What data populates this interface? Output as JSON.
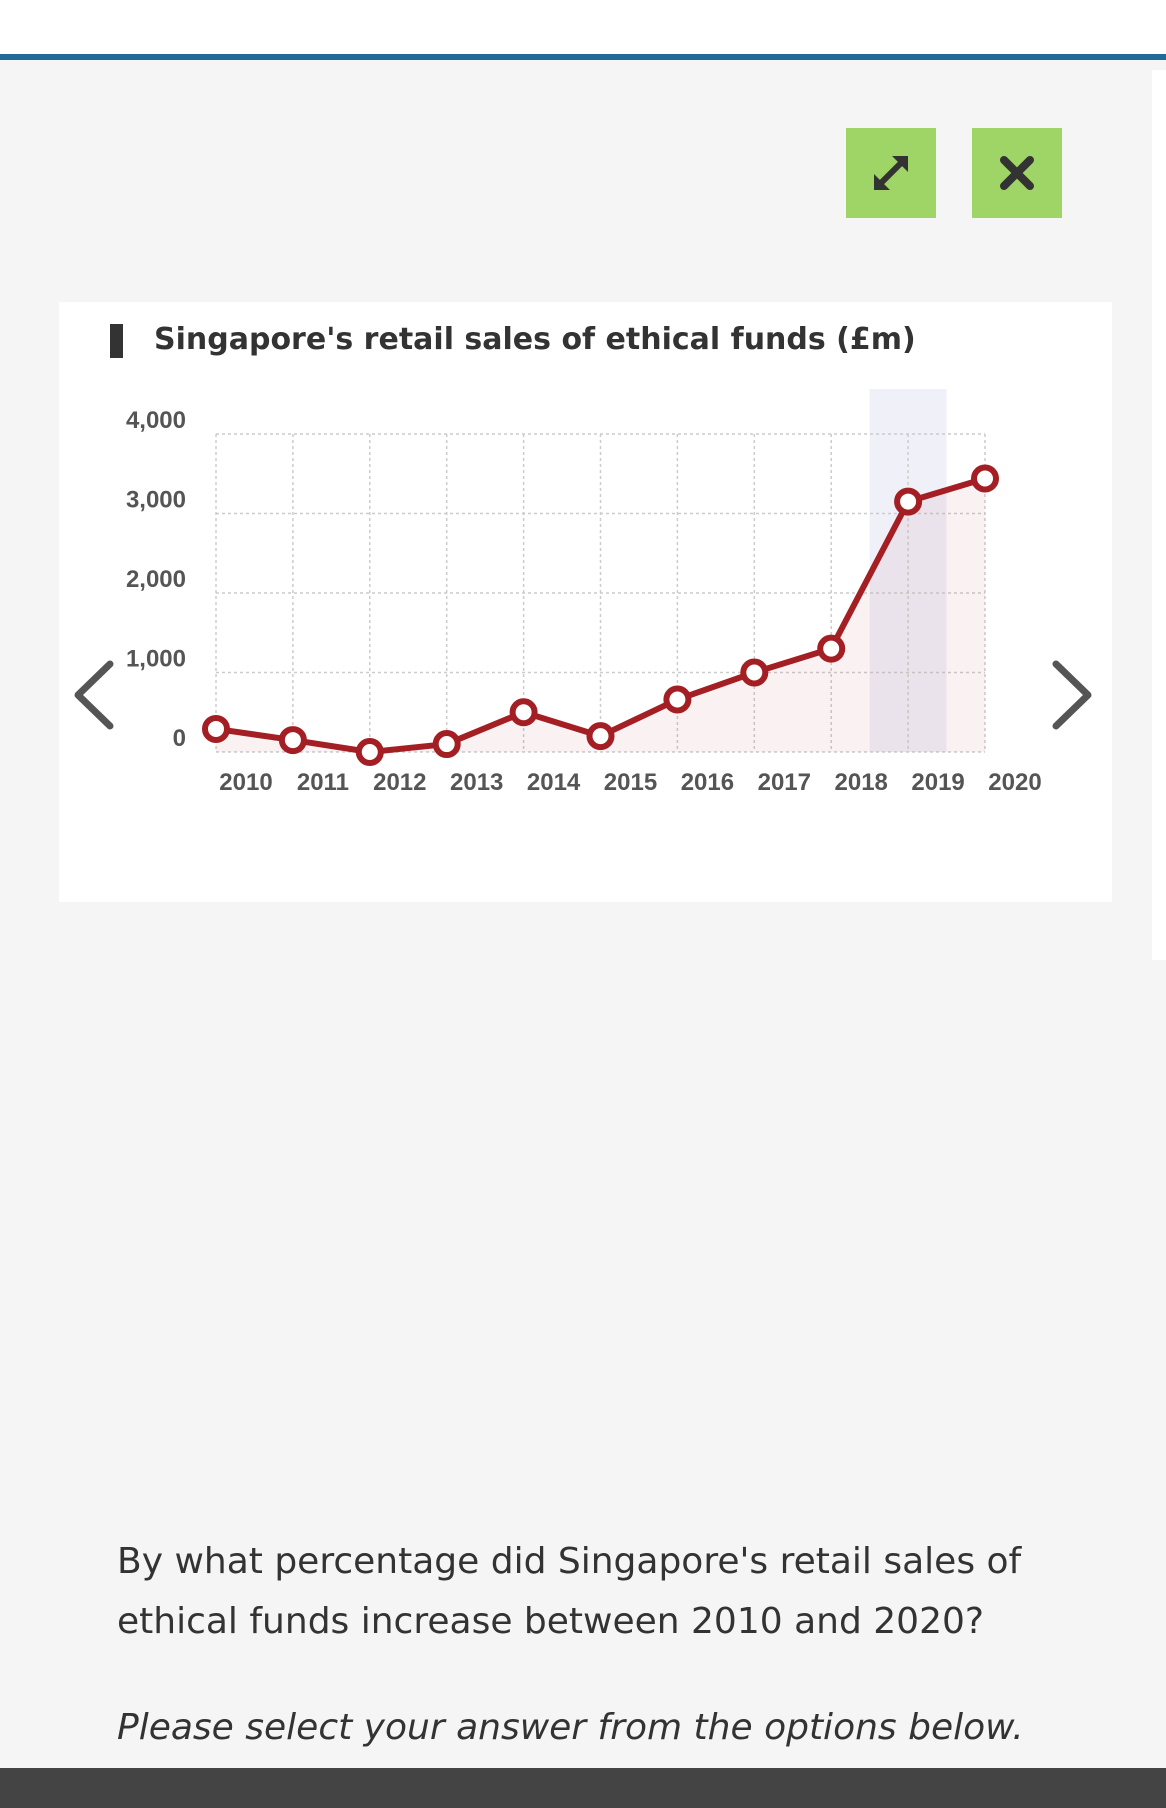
{
  "toolbar": {
    "expand_icon": "expand-arrows-icon",
    "close_icon": "close-x-icon",
    "button_color": "#9fd466"
  },
  "chart_card": {
    "title": "Singapore's retail sales of ethical funds (£m)"
  },
  "navigation": {
    "prev_icon": "chevron-left-icon",
    "next_icon": "chevron-right-icon"
  },
  "chart_data": {
    "type": "line",
    "title": "Singapore's retail sales of ethical funds (£m)",
    "xlabel": "",
    "ylabel": "",
    "categories": [
      "2010",
      "2011",
      "2012",
      "2013",
      "2014",
      "2015",
      "2016",
      "2017",
      "2018",
      "2019",
      "2020"
    ],
    "y_tick_labels": [
      "4,000",
      "3,000",
      "2,000",
      "1,000",
      "0"
    ],
    "series": [
      {
        "values": [
          290,
          150,
          0,
          100,
          500,
          200,
          660,
          1000,
          1300,
          3150,
          3440
        ]
      }
    ],
    "ylim": [
      0,
      4000
    ],
    "grid": true,
    "highlighted_category": "2019",
    "line_color": "#a31f24",
    "highlight_color": "#f0f0f8"
  },
  "question": {
    "text": "By what percentage did Singapore's retail sales of ethical funds increase between 2010 and 2020?",
    "instruction": "Please select your answer from the options below."
  }
}
